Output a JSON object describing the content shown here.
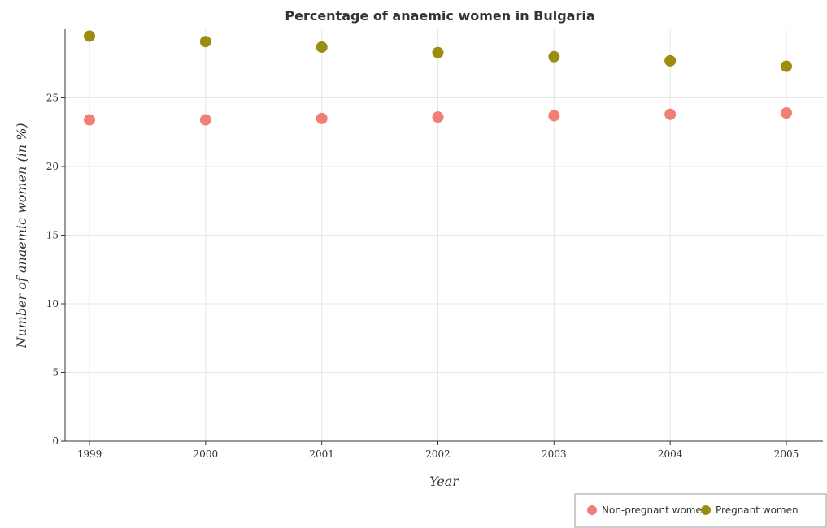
{
  "chart_data": {
    "type": "scatter",
    "title": "Percentage of anaemic women in Bulgaria",
    "xlabel": "Year",
    "ylabel": "Number of anaemic women (in %)",
    "categories": [
      "1999",
      "2000",
      "2001",
      "2002",
      "2003",
      "2004",
      "2005"
    ],
    "series": [
      {
        "name": "Non-pregnant women",
        "color": "#f07f75",
        "values": [
          23.4,
          23.4,
          23.5,
          23.6,
          23.7,
          23.8,
          23.9
        ]
      },
      {
        "name": "Pregnant women",
        "color": "#9c8c10",
        "values": [
          29.5,
          29.1,
          28.7,
          28.3,
          28.0,
          27.7,
          27.3
        ]
      }
    ],
    "yticks": [
      0,
      5,
      10,
      15,
      20,
      25
    ],
    "ylim": [
      0,
      30
    ],
    "grid": true,
    "legend": "bottom-right"
  }
}
